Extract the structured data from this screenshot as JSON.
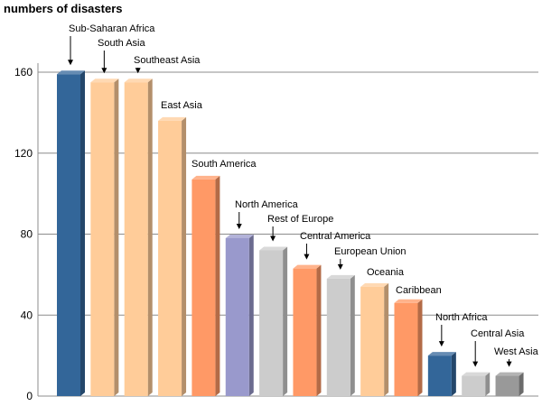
{
  "chart_data": {
    "type": "bar",
    "ylabel": "numbers of disasters",
    "ylim": [
      0,
      160
    ],
    "yticks": [
      0,
      40,
      80,
      120,
      160
    ],
    "grid": "horizontal",
    "categories": [
      "Sub-Saharan Africa",
      "South Asia",
      "Southeast Asia",
      "East Asia",
      "South America",
      "North America",
      "Rest of Europe",
      "Central America",
      "European Union",
      "Oceania",
      "Caribbean",
      "North Africa",
      "Central Asia",
      "West Asia"
    ],
    "values": [
      159,
      155,
      155,
      136,
      107,
      78,
      72,
      63,
      58,
      54,
      46,
      20,
      10,
      10
    ],
    "colors": [
      "#336699",
      "#FFCC99",
      "#FFCC99",
      "#FFCC99",
      "#FF9966",
      "#9999CC",
      "#CCCCCC",
      "#FF9966",
      "#CCCCCC",
      "#FFCC99",
      "#FF9966",
      "#336699",
      "#CCCCCC",
      "#999999"
    ]
  }
}
